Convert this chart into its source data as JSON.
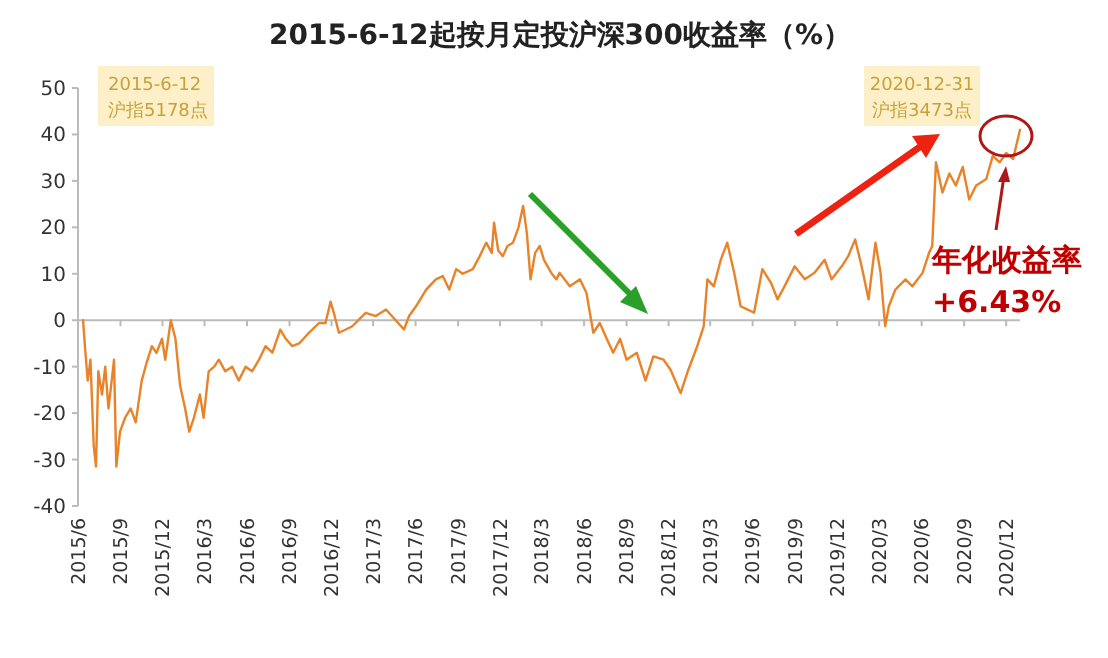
{
  "chart_data": {
    "type": "line",
    "title": "2015-6-12起按月定投沪深300收益率（%）",
    "annotations": [
      "2015-6-12\n沪指5178点",
      "2020-12-31\n沪指3473点",
      "年化收益率\n+6.43%"
    ],
    "xlim": [
      "2015-06-01",
      "2020-12-31"
    ],
    "xticks": [
      {
        "value": "2015-06-01",
        "label": "2015/6"
      },
      {
        "value": "2015-09-01",
        "label": "2015/9"
      },
      {
        "value": "2015-12-01",
        "label": "2015/12"
      },
      {
        "value": "2016-03-01",
        "label": "2016/3"
      },
      {
        "value": "2016-06-01",
        "label": "2016/6"
      },
      {
        "value": "2016-09-01",
        "label": "2016/9"
      },
      {
        "value": "2016-12-01",
        "label": "2016/12"
      },
      {
        "value": "2017-03-01",
        "label": "2017/3"
      },
      {
        "value": "2017-06-01",
        "label": "2017/6"
      },
      {
        "value": "2017-09-01",
        "label": "2017/9"
      },
      {
        "value": "2017-12-01",
        "label": "2017/12"
      },
      {
        "value": "2018-03-01",
        "label": "2018/3"
      },
      {
        "value": "2018-06-01",
        "label": "2018/6"
      },
      {
        "value": "2018-09-01",
        "label": "2018/9"
      },
      {
        "value": "2018-12-01",
        "label": "2018/12"
      },
      {
        "value": "2019-03-01",
        "label": "2019/3"
      },
      {
        "value": "2019-06-01",
        "label": "2019/6"
      },
      {
        "value": "2019-09-01",
        "label": "2019/9"
      },
      {
        "value": "2019-12-01",
        "label": "2019/12"
      },
      {
        "value": "2020-03-01",
        "label": "2020/3"
      },
      {
        "value": "2020-06-01",
        "label": "2020/6"
      },
      {
        "value": "2020-09-01",
        "label": "2020/9"
      },
      {
        "value": "2020-12-01",
        "label": "2020/12"
      }
    ],
    "ylim": [
      -40,
      50
    ],
    "yticks": [
      -40,
      -30,
      -20,
      -10,
      0,
      10,
      20,
      30,
      40,
      50
    ],
    "marker": "none",
    "line_style": "solid",
    "series": [
      {
        "color": "#e8832a",
        "x": [
          "2015-06-12",
          "2015-06-16",
          "2015-06-22",
          "2015-06-28",
          "2015-07-05",
          "2015-07-10",
          "2015-07-15",
          "2015-07-23",
          "2015-07-30",
          "2015-08-06",
          "2015-08-13",
          "2015-08-18",
          "2015-08-23",
          "2015-08-31",
          "2015-09-11",
          "2015-09-23",
          "2015-10-04",
          "2015-10-17",
          "2015-10-28",
          "2015-11-08",
          "2015-11-18",
          "2015-11-30",
          "2015-12-07",
          "2015-12-19",
          "2015-12-29",
          "2016-01-08",
          "2016-01-19",
          "2016-01-28",
          "2016-02-07",
          "2016-02-20",
          "2016-02-28",
          "2016-03-10",
          "2016-03-22",
          "2016-04-01",
          "2016-04-15",
          "2016-04-30",
          "2016-05-14",
          "2016-05-29",
          "2016-06-12",
          "2016-06-27",
          "2016-07-11",
          "2016-07-26",
          "2016-08-12",
          "2016-08-24",
          "2016-09-07",
          "2016-09-22",
          "2016-10-13",
          "2016-11-04",
          "2016-11-18",
          "2016-11-29",
          "2016-12-06",
          "2016-12-17",
          "2017-01-01",
          "2017-01-15",
          "2017-02-13",
          "2017-03-07",
          "2017-03-29",
          "2017-04-19",
          "2017-05-07",
          "2017-05-18",
          "2017-06-02",
          "2017-06-24",
          "2017-07-15",
          "2017-07-30",
          "2017-08-13",
          "2017-08-28",
          "2017-09-11",
          "2017-10-03",
          "2017-10-18",
          "2017-11-01",
          "2017-11-13",
          "2017-11-18",
          "2017-11-27",
          "2017-12-07",
          "2017-12-17",
          "2017-12-29",
          "2018-01-10",
          "2018-01-20",
          "2018-01-28",
          "2018-02-05",
          "2018-02-15",
          "2018-02-25",
          "2018-03-06",
          "2018-03-14",
          "2018-03-23",
          "2018-04-02",
          "2018-04-09",
          "2018-05-01",
          "2018-05-23",
          "2018-06-06",
          "2018-06-21",
          "2018-07-05",
          "2018-07-20",
          "2018-08-03",
          "2018-08-18",
          "2018-09-01",
          "2018-09-23",
          "2018-10-12",
          "2018-10-29",
          "2018-11-20",
          "2018-12-05",
          "2018-12-27",
          "2019-01-13",
          "2019-02-01",
          "2019-02-15",
          "2019-02-23",
          "2019-03-09",
          "2019-03-24",
          "2019-04-07",
          "2019-04-22",
          "2019-05-06",
          "2019-05-21",
          "2019-06-04",
          "2019-06-22",
          "2019-07-11",
          "2019-07-25",
          "2019-08-09",
          "2019-08-31",
          "2019-09-22",
          "2019-10-13",
          "2019-11-04",
          "2019-11-19",
          "2019-12-11",
          "2019-12-25",
          "2020-01-09",
          "2020-01-23",
          "2020-02-07",
          "2020-02-22",
          "2020-03-04",
          "2020-03-14",
          "2020-03-22",
          "2020-04-05",
          "2020-04-27",
          "2020-05-12",
          "2020-06-03",
          "2020-06-17",
          "2020-06-24",
          "2020-07-02",
          "2020-07-16",
          "2020-07-31",
          "2020-08-14",
          "2020-08-29",
          "2020-09-12",
          "2020-09-27",
          "2020-10-19",
          "2020-11-02",
          "2020-11-17",
          "2020-12-01",
          "2020-12-16",
          "2020-12-31"
        ],
        "values": [
          0,
          -5.6,
          -13,
          -8.5,
          -27,
          -31.5,
          -11,
          -16,
          -10,
          -19,
          -13,
          -8.5,
          -31.5,
          -24,
          -21,
          -19,
          -22,
          -13,
          -9,
          -5.6,
          -7,
          -4,
          -8.5,
          0,
          -4,
          -14,
          -19,
          -24,
          -21,
          -16,
          -21,
          -11,
          -10,
          -8.5,
          -11,
          -10,
          -13,
          -10,
          -11,
          -8.5,
          -5.6,
          -7,
          -2,
          -4,
          -5.6,
          -5,
          -2.7,
          -0.6,
          -0.6,
          4,
          1.6,
          -2.7,
          -2,
          -1.3,
          1.6,
          0.9,
          2.3,
          0,
          -2,
          0.9,
          3,
          6.6,
          8.8,
          9.5,
          6.6,
          11,
          10,
          11,
          13.8,
          16.7,
          14.5,
          21,
          15,
          13.8,
          16,
          16.7,
          20,
          24.6,
          18.8,
          8.8,
          14.5,
          16,
          13,
          11.6,
          10,
          8.8,
          10.2,
          7.3,
          8.8,
          5.9,
          -2.7,
          -0.6,
          -4,
          -7,
          -4,
          -8.5,
          -7,
          -13,
          -7.8,
          -8.5,
          -10.6,
          -15.7,
          -10.6,
          -5.6,
          -1.3,
          8.8,
          7.3,
          13,
          16.7,
          10.2,
          3,
          2.3,
          1.6,
          11,
          8,
          4.5,
          7.3,
          11.6,
          8.8,
          10.2,
          13,
          8.8,
          11.6,
          13.8,
          17.4,
          11.6,
          4.5,
          16.7,
          10.2,
          -1.3,
          3,
          6.6,
          8.8,
          7.3,
          10.2,
          14.5,
          16,
          34,
          27.5,
          31.6,
          29,
          33,
          26,
          29,
          30.4,
          35.4,
          34,
          36,
          34.7,
          41
        ]
      }
    ]
  }
}
